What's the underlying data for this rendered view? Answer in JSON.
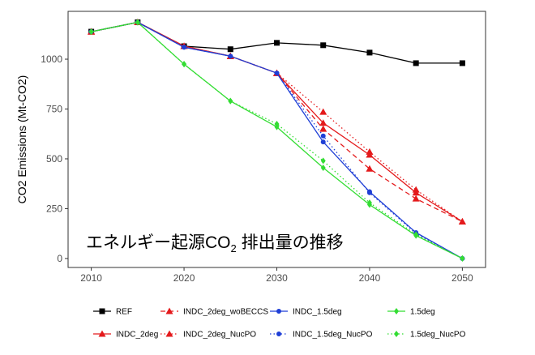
{
  "chart_data": {
    "type": "line",
    "ylabel": "CO2 Emissions (Mt-CO2)",
    "xlabel": "",
    "xlim": [
      2007.5,
      2052.5
    ],
    "ylim": [
      -45,
      1240
    ],
    "x_ticks": [
      2010,
      2020,
      2030,
      2040,
      2050
    ],
    "y_ticks": [
      0,
      250,
      500,
      750,
      1000
    ],
    "grid": false,
    "annotation": {
      "text": "エネルギー起源CO",
      "subscript": "2",
      "suffix": " 排出量の推移"
    },
    "legend_position": "bottom",
    "series": [
      {
        "name": "REF",
        "color": "#000000",
        "marker": "square",
        "dash": "solid",
        "x": [
          2010,
          2015,
          2020,
          2025,
          2030,
          2035,
          2040,
          2045,
          2050
        ],
        "values": [
          1138,
          1185,
          1065,
          1050,
          1082,
          1070,
          1033,
          980,
          980
        ]
      },
      {
        "name": "INDC_2deg",
        "color": "#e41a1c",
        "marker": "triangle",
        "dash": "solid",
        "x": [
          2010,
          2015,
          2020,
          2025,
          2030,
          2035,
          2040,
          2045,
          2050
        ],
        "values": [
          1138,
          1185,
          1065,
          1015,
          930,
          680,
          520,
          330,
          185
        ]
      },
      {
        "name": "INDC_2deg_woBECCS",
        "color": "#e41a1c",
        "marker": "triangle",
        "dash": "dashed",
        "x": [
          2010,
          2015,
          2020,
          2025,
          2030,
          2035,
          2040,
          2045,
          2050
        ],
        "values": [
          1138,
          1185,
          1065,
          1015,
          930,
          650,
          450,
          300,
          185
        ]
      },
      {
        "name": "INDC_2deg_NucPO",
        "color": "#e41a1c",
        "marker": "triangle",
        "dash": "dotted",
        "x": [
          2010,
          2015,
          2020,
          2025,
          2030,
          2035,
          2040,
          2045,
          2050
        ],
        "values": [
          1138,
          1185,
          1065,
          1015,
          930,
          735,
          535,
          345,
          185
        ]
      },
      {
        "name": "INDC_1.5deg",
        "color": "#1f3fd6",
        "marker": "circle",
        "dash": "solid",
        "x": [
          2010,
          2015,
          2020,
          2025,
          2030,
          2035,
          2040,
          2045,
          2050
        ],
        "values": [
          1138,
          1185,
          1060,
          1015,
          930,
          585,
          335,
          130,
          0
        ]
      },
      {
        "name": "INDC_1.5deg_NucPO",
        "color": "#1f3fd6",
        "marker": "circle",
        "dash": "dotted",
        "x": [
          2010,
          2015,
          2020,
          2025,
          2030,
          2035,
          2040,
          2045,
          2050
        ],
        "values": [
          1138,
          1185,
          1060,
          1015,
          930,
          615,
          330,
          125,
          0
        ]
      },
      {
        "name": "1.5deg",
        "color": "#33dd33",
        "marker": "diamond",
        "dash": "solid",
        "x": [
          2010,
          2015,
          2020,
          2025,
          2030,
          2035,
          2040,
          2045,
          2050
        ],
        "values": [
          1138,
          1185,
          975,
          790,
          660,
          455,
          270,
          115,
          0
        ]
      },
      {
        "name": "1.5deg_NucPO",
        "color": "#33dd33",
        "marker": "diamond",
        "dash": "dotted",
        "x": [
          2010,
          2015,
          2020,
          2025,
          2030,
          2035,
          2040,
          2045,
          2050
        ],
        "values": [
          1138,
          1185,
          975,
          790,
          675,
          490,
          280,
          120,
          0
        ]
      }
    ]
  }
}
